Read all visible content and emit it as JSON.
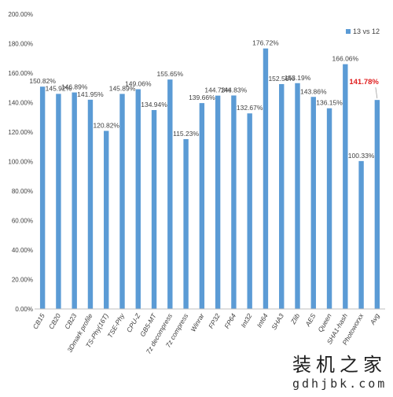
{
  "chart_data": {
    "type": "bar",
    "title": "",
    "xlabel": "",
    "ylabel": "",
    "categories": [
      "CB15",
      "CB20",
      "CB23",
      "3Dmark profile",
      "TS-Phy(16T)",
      "TSE-Phy",
      "CPU-Z",
      "GB5-MT",
      "7z decompress",
      "7z compress",
      "Winrar",
      "FP32",
      "FP64",
      "Int32",
      "Int64",
      "SHA3",
      "Zlib",
      "AES",
      "Queen",
      "SHA1-hash",
      "Photoworxx",
      "Avg"
    ],
    "series": [
      {
        "name": "13 vs 12",
        "values": [
          150.82,
          145.92,
          146.89,
          141.95,
          120.82,
          145.89,
          149.06,
          134.94,
          155.65,
          115.23,
          139.66,
          144.73,
          144.83,
          132.67,
          176.72,
          152.56,
          153.19,
          143.86,
          136.15,
          166.06,
          100.33,
          141.78
        ],
        "labels": [
          "150.82%",
          "145.92%",
          "146.89%",
          "141.95%",
          "120.82%",
          "145.89%",
          "149.06%",
          "134.94%",
          "155.65%",
          "115.23%",
          "139.66%",
          "144.73%",
          "144.83%",
          "132.67%",
          "176.72%",
          "152.56%",
          "153.19%",
          "143.86%",
          "136.15%",
          "166.06%",
          "100.33%",
          "141.78%"
        ]
      }
    ],
    "highlight_index": 21,
    "ylim": [
      0,
      200
    ],
    "yticks": [
      "0.00%",
      "20.00%",
      "40.00%",
      "60.00%",
      "80.00%",
      "100.00%",
      "120.00%",
      "140.00%",
      "160.00%",
      "180.00%",
      "200.00%"
    ],
    "grid": false,
    "legend": "top-right",
    "colors": {
      "bar": "#5b9bd5",
      "highlight_label": "#e02020",
      "axis": "#bfbfbf"
    }
  },
  "watermark": {
    "brand": "装机之家",
    "url": "gdhjbk.com"
  }
}
